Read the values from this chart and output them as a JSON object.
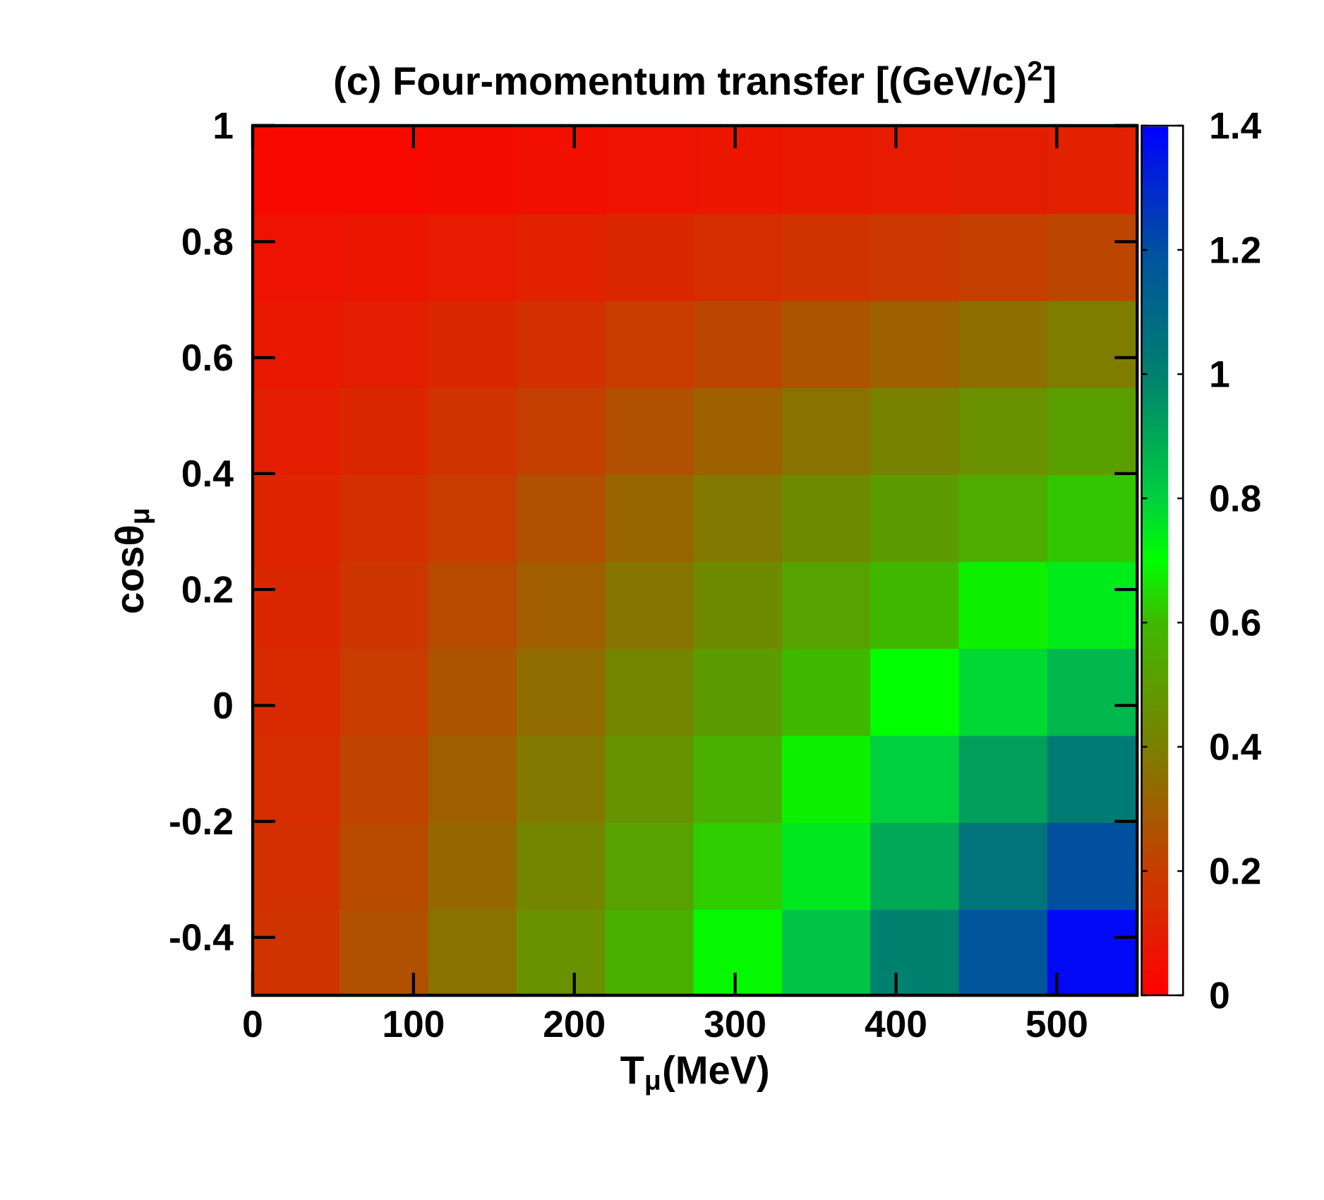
{
  "chart_data": {
    "type": "heatmap",
    "title": "(c) Four-momentum transfer [(GeV/c)$^{2}$]",
    "xlabel": "T$_{μ}$(MeV)",
    "ylabel": "cosθ$_{μ}$",
    "xlim": [
      0,
      550
    ],
    "ylim": [
      -0.5,
      1
    ],
    "xticks": [
      0,
      100,
      200,
      300,
      400,
      500
    ],
    "yticks": [
      {
        "value": -0.4,
        "label": "-0.4"
      },
      {
        "value": -0.2,
        "label": "-0.2"
      },
      0,
      0.2,
      0.4,
      0.6,
      0.8,
      1
    ],
    "clim": [
      0,
      1.4
    ],
    "cticks": [
      0,
      0.2,
      0.4,
      0.6,
      0.8,
      1,
      1.2,
      1.4
    ],
    "cells": [
      [
        0.03,
        0.03,
        0.04,
        0.05,
        0.06,
        0.07,
        0.08,
        0.09,
        0.1,
        0.11
      ],
      [
        0.06,
        0.07,
        0.09,
        0.11,
        0.13,
        0.15,
        0.17,
        0.19,
        0.21,
        0.23
      ],
      [
        0.08,
        0.1,
        0.13,
        0.16,
        0.2,
        0.23,
        0.27,
        0.31,
        0.35,
        0.39
      ],
      [
        0.1,
        0.13,
        0.17,
        0.21,
        0.26,
        0.31,
        0.36,
        0.41,
        0.46,
        0.51
      ],
      [
        0.12,
        0.16,
        0.2,
        0.26,
        0.32,
        0.38,
        0.44,
        0.5,
        0.56,
        0.62
      ],
      [
        0.13,
        0.18,
        0.24,
        0.3,
        0.37,
        0.44,
        0.52,
        0.6,
        0.68,
        0.74
      ],
      [
        0.14,
        0.2,
        0.27,
        0.34,
        0.42,
        0.5,
        0.6,
        0.7,
        0.78,
        0.86
      ],
      [
        0.15,
        0.22,
        0.3,
        0.38,
        0.47,
        0.57,
        0.68,
        0.8,
        0.92,
        1.02
      ],
      [
        0.16,
        0.24,
        0.33,
        0.42,
        0.52,
        0.63,
        0.75,
        0.9,
        1.05,
        1.2
      ],
      [
        0.17,
        0.26,
        0.36,
        0.46,
        0.57,
        0.69,
        0.83,
        1.0,
        1.18,
        1.38
      ]
    ]
  }
}
